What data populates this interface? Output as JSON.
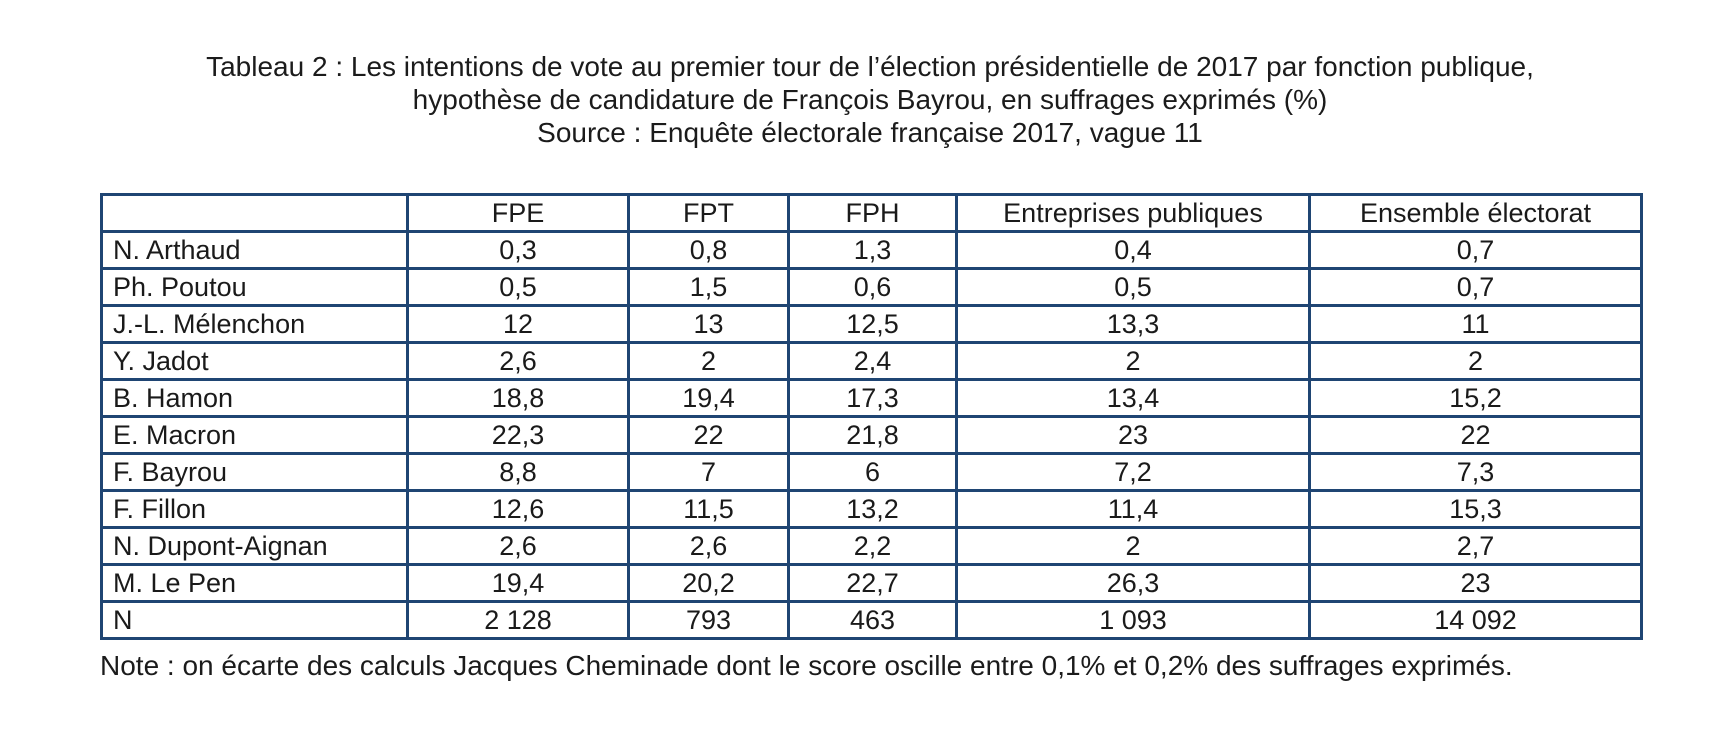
{
  "title": {
    "line1": "Tableau 2 : Les intentions de vote au premier tour de l’élection présidentielle de 2017 par fonction publique,",
    "line2": "hypothèse de candidature de François Bayrou, en suffrages exprimés (%)",
    "line3": "Source : Enquête électorale française 2017, vague 11"
  },
  "table": {
    "columns": [
      "",
      "FPE",
      "FPT",
      "FPH",
      "Entreprises publiques",
      "Ensemble électorat"
    ],
    "rows": [
      {
        "label": "N. Arthaud",
        "values": [
          "0,3",
          "0,8",
          "1,3",
          "0,4",
          "0,7"
        ]
      },
      {
        "label": "Ph. Poutou",
        "values": [
          "0,5",
          "1,5",
          "0,6",
          "0,5",
          "0,7"
        ]
      },
      {
        "label": "J.-L. Mélenchon",
        "values": [
          "12",
          "13",
          "12,5",
          "13,3",
          "11"
        ]
      },
      {
        "label": "Y. Jadot",
        "values": [
          "2,6",
          "2",
          "2,4",
          "2",
          "2"
        ]
      },
      {
        "label": "B. Hamon",
        "values": [
          "18,8",
          "19,4",
          "17,3",
          "13,4",
          "15,2"
        ]
      },
      {
        "label": "E. Macron",
        "values": [
          "22,3",
          "22",
          "21,8",
          "23",
          "22"
        ]
      },
      {
        "label": "F. Bayrou",
        "values": [
          "8,8",
          "7",
          "6",
          "7,2",
          "7,3"
        ]
      },
      {
        "label": "F. Fillon",
        "values": [
          "12,6",
          "11,5",
          "13,2",
          "11,4",
          "15,3"
        ]
      },
      {
        "label": "N. Dupont-Aignan",
        "values": [
          "2,6",
          "2,6",
          "2,2",
          "2",
          "2,7"
        ]
      },
      {
        "label": "M. Le Pen",
        "values": [
          "19,4",
          "20,2",
          "22,7",
          "26,3",
          "23"
        ]
      },
      {
        "label": "N",
        "values": [
          "2 128",
          "793",
          "463",
          "1 093",
          "14 092"
        ]
      }
    ]
  },
  "note": "Note : on écarte des calculs Jacques Cheminade dont le score oscille entre 0,1% et 0,2% des suffrages exprimés.",
  "colors": {
    "border": "#1f4573",
    "text": "#1a1a1a",
    "background": "#ffffff"
  }
}
